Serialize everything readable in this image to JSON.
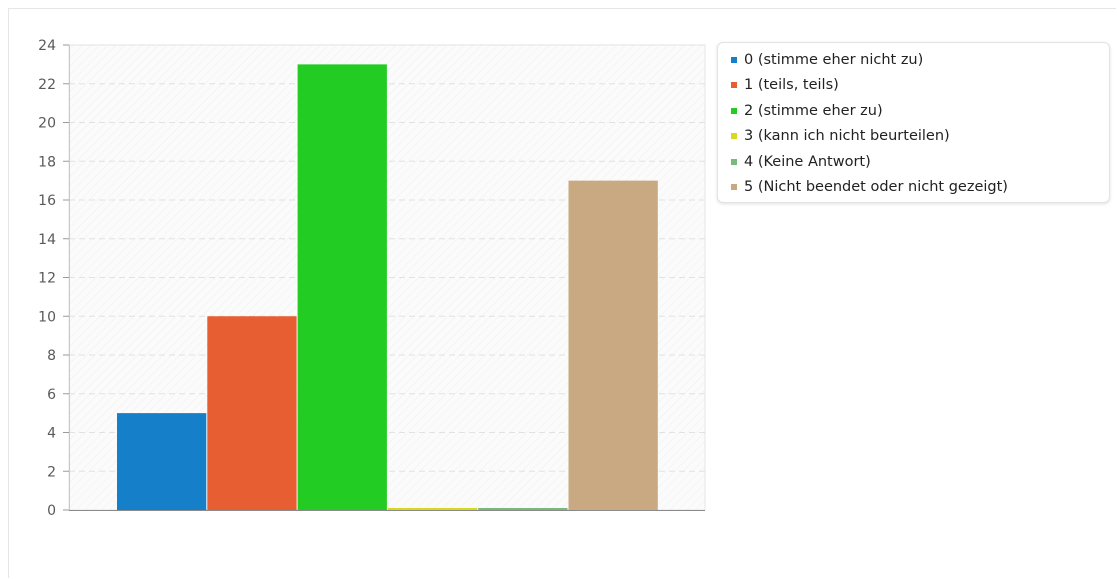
{
  "chart_data": {
    "type": "bar",
    "title": "",
    "xlabel": "",
    "ylabel": "",
    "ylim": [
      0,
      24
    ],
    "yticks": [
      0,
      2,
      4,
      6,
      8,
      10,
      12,
      14,
      16,
      18,
      20,
      22,
      24
    ],
    "grid": true,
    "legend_position": "top-right",
    "series": [
      {
        "name": "0 (stimme eher nicht zu)",
        "value": 5,
        "color": "#1580c9"
      },
      {
        "name": "1 (teils, teils)",
        "value": 10,
        "color": "#e85e33"
      },
      {
        "name": "2 (stimme eher zu)",
        "value": 23,
        "color": "#22cc22"
      },
      {
        "name": "3 (kann ich nicht beurteilen)",
        "value": 0,
        "color": "#d8d81e"
      },
      {
        "name": "4 (Keine Antwort)",
        "value": 0,
        "color": "#7bb87b"
      },
      {
        "name": "5 (Nicht beendet oder nicht gezeigt)",
        "value": 17,
        "color": "#c9a981"
      }
    ]
  }
}
